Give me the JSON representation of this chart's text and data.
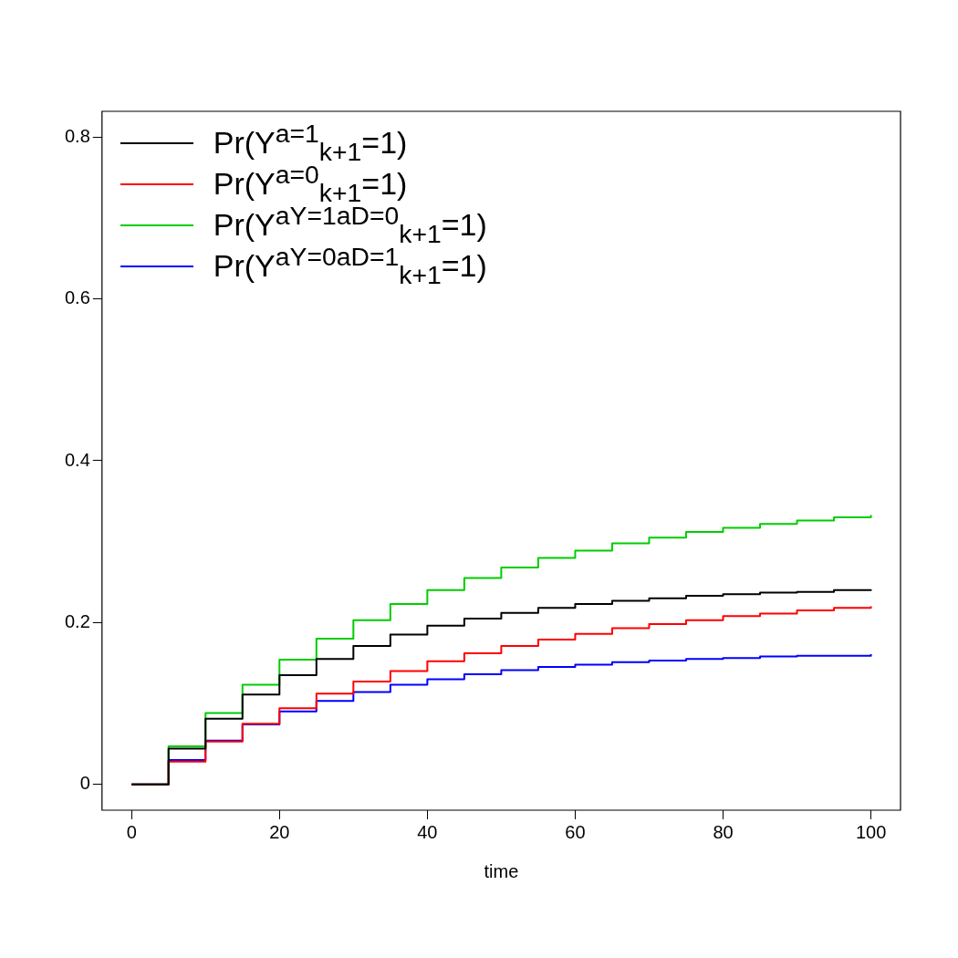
{
  "chart_data": {
    "type": "step",
    "xlabel": "time",
    "x": [
      0,
      5,
      10,
      15,
      20,
      25,
      30,
      35,
      40,
      45,
      50,
      55,
      60,
      65,
      70,
      75,
      80,
      85,
      90,
      95,
      100
    ],
    "xlim": [
      -4,
      104
    ],
    "xticks": [
      0,
      20,
      40,
      60,
      80,
      100
    ],
    "ylim": [
      -0.032,
      0.832
    ],
    "yticks": [
      0,
      0.2,
      0.4,
      0.6,
      0.8
    ],
    "grid": false,
    "legend": "top left",
    "marker": "none",
    "line_style": "solid",
    "series": [
      {
        "name": "Pr(Y$^{a=1}$$_{k+1}$=1)",
        "color": "#000000",
        "values": [
          0,
          0.044,
          0.081,
          0.111,
          0.135,
          0.155,
          0.171,
          0.185,
          0.196,
          0.205,
          0.212,
          0.218,
          0.223,
          0.227,
          0.23,
          0.233,
          0.235,
          0.237,
          0.238,
          0.24,
          0.241
        ]
      },
      {
        "name": "Pr(Y$^{a=0}$$_{k+1}$=1)",
        "color": "#ff0000",
        "values": [
          0,
          0.028,
          0.053,
          0.075,
          0.094,
          0.112,
          0.127,
          0.14,
          0.152,
          0.162,
          0.171,
          0.179,
          0.186,
          0.193,
          0.198,
          0.203,
          0.208,
          0.211,
          0.215,
          0.218,
          0.22
        ]
      },
      {
        "name": "Pr(Y$^{aY=1aD=0}$$_{k+1}$=1)",
        "color": "#00cd00",
        "values": [
          0,
          0.047,
          0.088,
          0.123,
          0.154,
          0.18,
          0.203,
          0.223,
          0.24,
          0.255,
          0.268,
          0.28,
          0.289,
          0.298,
          0.305,
          0.312,
          0.317,
          0.322,
          0.326,
          0.33,
          0.333
        ]
      },
      {
        "name": "Pr(Y$^{aY=0aD=1}$$_{k+1}$=1)",
        "color": "#0000ff",
        "values": [
          0,
          0.03,
          0.054,
          0.074,
          0.09,
          0.103,
          0.114,
          0.123,
          0.13,
          0.136,
          0.141,
          0.145,
          0.148,
          0.151,
          0.153,
          0.155,
          0.156,
          0.158,
          0.159,
          0.159,
          0.161
        ]
      }
    ]
  }
}
